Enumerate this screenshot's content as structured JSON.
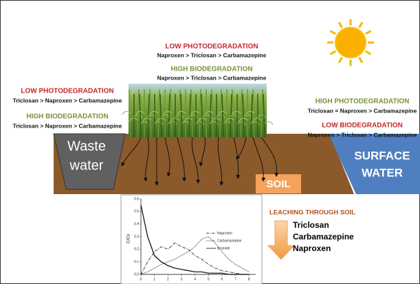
{
  "top_note": {
    "photo_title": "LOW PHOTODEGRADATION",
    "photo_order": "Naproxen > Triclosan > Carbamazepine",
    "bio_title": "HIGH BIODEGRADATION",
    "bio_order": "Naproxen > Triclosan > Carbamazepine"
  },
  "left_note": {
    "photo_title": "LOW PHOTODEGRADATION",
    "photo_order": "Triclosan > Naproxen > Carbamazepine",
    "bio_title": "HIGH BIODEGRADATION",
    "bio_order": "Triclosan > Naproxen > Carbamazepine"
  },
  "right_note": {
    "photo_title": "HIGH PHOTODEGRADATION",
    "photo_order": "Triclosan = Naproxen > Carbamazepine",
    "bio_title": "LOW BIODEGRADATION",
    "bio_order": "Naproxen > Triclosan > Carbamazepine"
  },
  "compartments": {
    "waste_water": [
      "Waste",
      "water"
    ],
    "surface_water": [
      "SURFACE",
      "WATER"
    ],
    "soil": "SOIL"
  },
  "leaching": {
    "title": "LEACHING THROUGH SOIL",
    "order": [
      "Triclosan",
      "Carbamazepine",
      "Naproxen"
    ]
  },
  "inset_chart": {
    "type": "line",
    "y_label": "C/Co",
    "x": [
      0,
      0.5,
      1,
      1.5,
      2,
      2.5,
      3,
      3.5,
      4,
      4.5,
      5,
      5.5,
      6,
      6.5,
      7,
      7.5,
      8
    ],
    "series": [
      {
        "name": "Naproxen",
        "color": "#000000",
        "style": "dash-dot",
        "values": [
          0,
          0.1,
          0.18,
          0.22,
          0.2,
          0.25,
          0.22,
          0.2,
          0.15,
          0.12,
          0.08,
          0.05,
          0.03,
          0.02,
          0.01,
          0,
          0
        ]
      },
      {
        "name": "Carbamazepine",
        "color": "#000000",
        "style": "dotted",
        "values": [
          0,
          0.02,
          0.05,
          0.08,
          0.1,
          0.12,
          0.15,
          0.18,
          0.22,
          0.28,
          0.3,
          0.25,
          0.18,
          0.12,
          0.08,
          0.05,
          0.02
        ]
      },
      {
        "name": "Bromide",
        "color": "#000000",
        "style": "solid",
        "values": [
          0.55,
          0.3,
          0.15,
          0.1,
          0.07,
          0.05,
          0.04,
          0.03,
          0.02,
          0.02,
          0.01,
          0.01,
          0.01,
          0,
          0,
          0,
          0
        ]
      }
    ],
    "xlim": [
      0,
      8.5
    ],
    "ylim": [
      0,
      0.6
    ],
    "xticks": [
      0,
      1,
      2,
      3,
      4,
      5,
      6,
      7,
      8
    ],
    "yticks": [
      {
        "value": 0,
        "label": "0.0"
      },
      0.1,
      0.2,
      0.3,
      0.4,
      0.5,
      0.6
    ]
  }
}
